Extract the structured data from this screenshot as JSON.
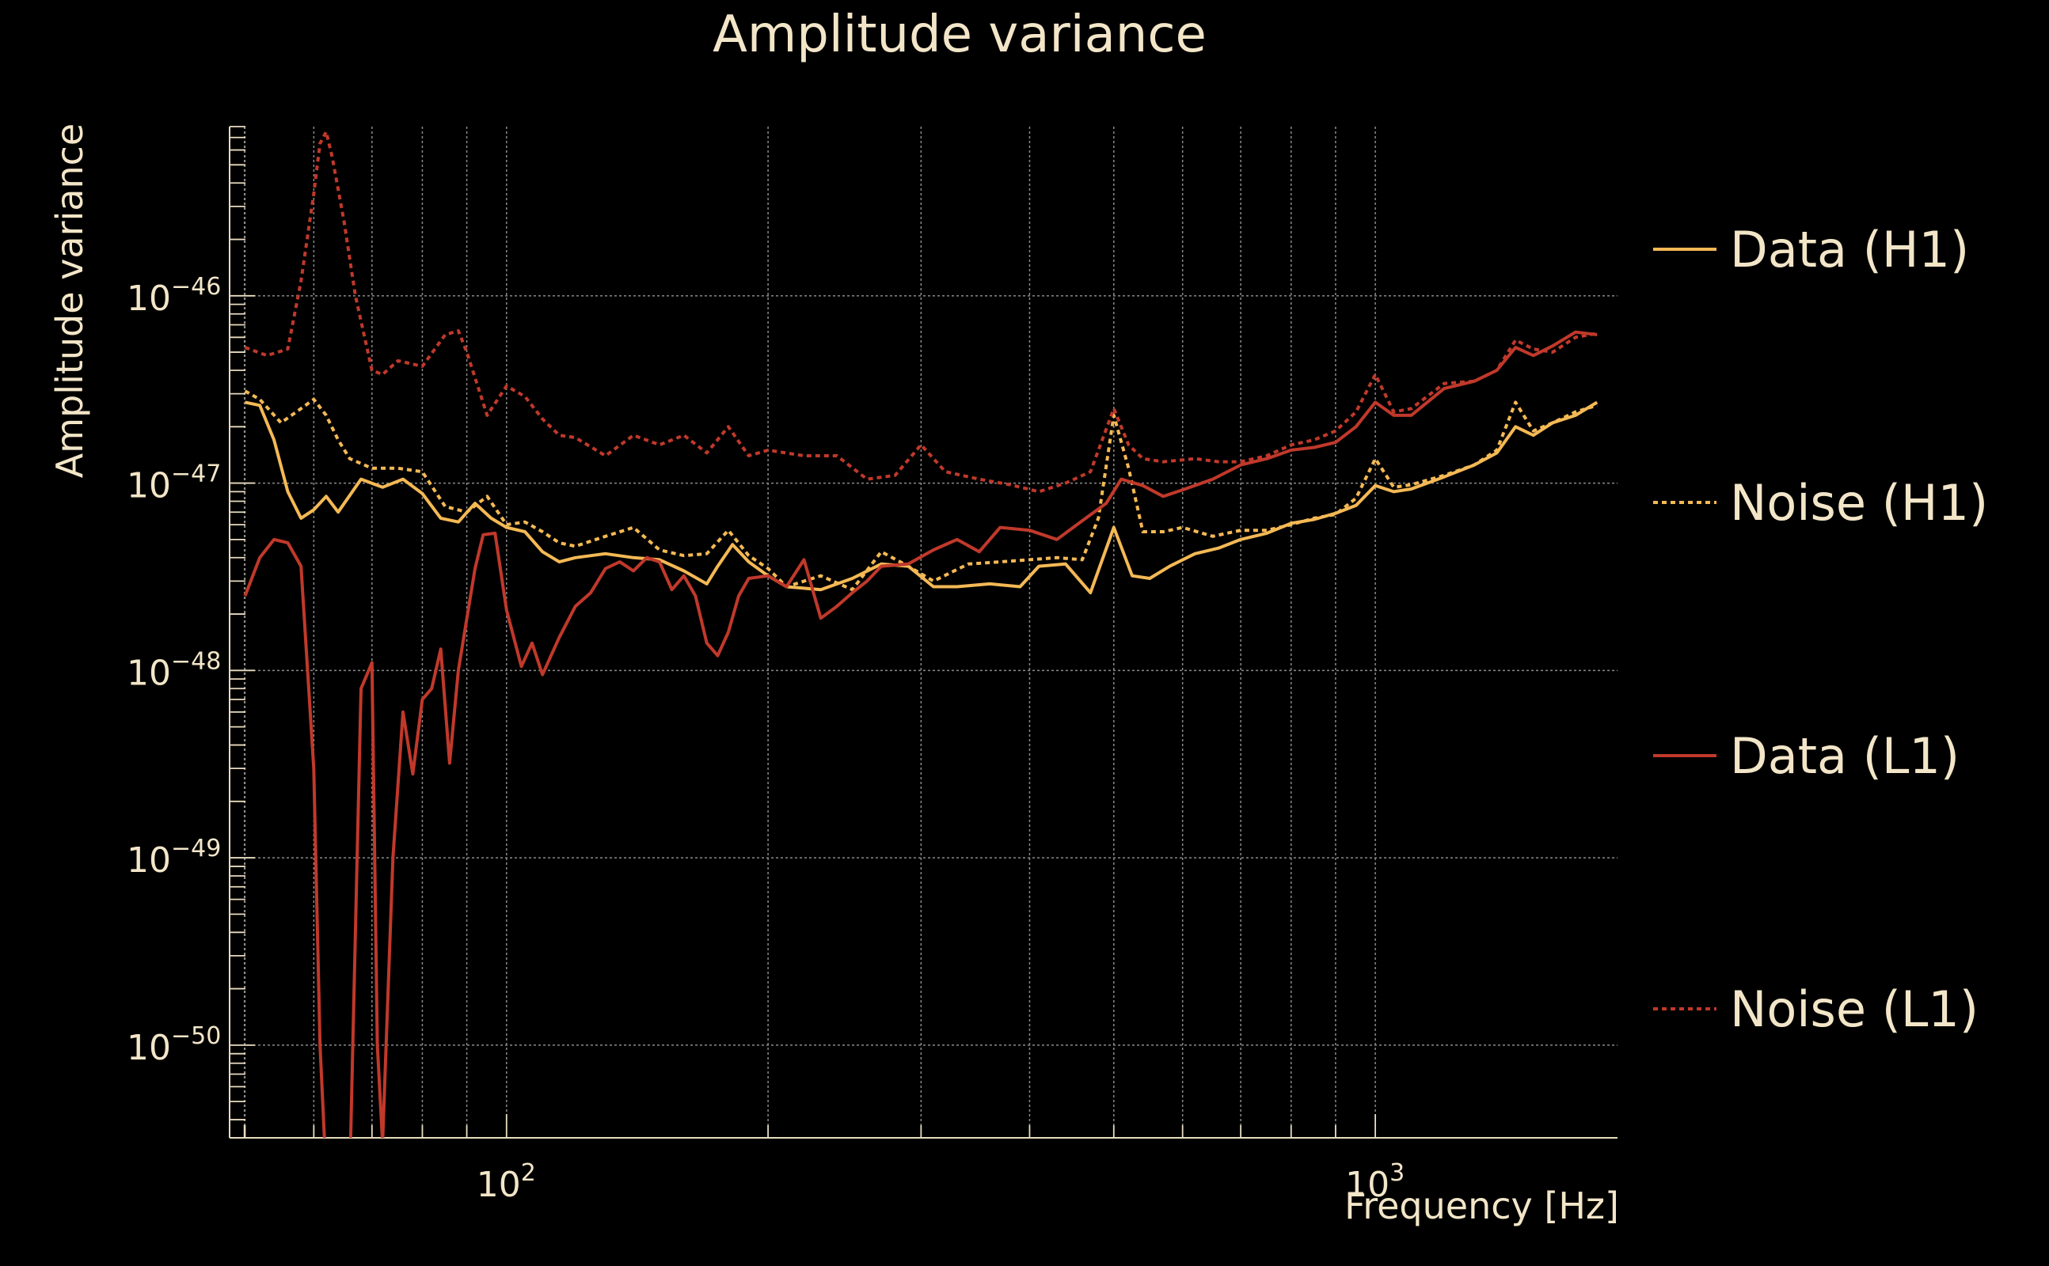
{
  "chart_data": {
    "type": "line",
    "title": "Amplitude variance",
    "xlabel": "Frequency [Hz]",
    "ylabel": "Amplitude variance",
    "x_scale": "log",
    "y_scale": "log",
    "xlim": [
      48,
      1900
    ],
    "ylim": [
      3.2e-51,
      8e-46
    ],
    "x_ticks": [
      {
        "value": 100,
        "base": "10",
        "exp": "2"
      },
      {
        "value": 1000,
        "base": "10",
        "exp": "3"
      }
    ],
    "y_ticks": [
      {
        "value": 1e-46,
        "base": "10",
        "exp": "−46"
      },
      {
        "value": 1e-47,
        "base": "10",
        "exp": "−47"
      },
      {
        "value": 1e-48,
        "base": "10",
        "exp": "−48"
      },
      {
        "value": 1e-49,
        "base": "10",
        "exp": "−49"
      },
      {
        "value": 1e-50,
        "base": "10",
        "exp": "−50"
      }
    ],
    "grid": true,
    "legend_position": "right",
    "colors": {
      "background": "#000000",
      "text": "#f3e6c8",
      "axis": "#e8dcc0",
      "grid": "#8a8a8a"
    },
    "series": [
      {
        "name": "Data (H1)",
        "color": "#f4b955",
        "style": "solid",
        "points": [
          [
            50,
            2.7e-47
          ],
          [
            52,
            2.6e-47
          ],
          [
            54,
            1.7e-47
          ],
          [
            56,
            9e-48
          ],
          [
            58,
            6.5e-48
          ],
          [
            60,
            7.2e-48
          ],
          [
            62,
            8.5e-48
          ],
          [
            64,
            7e-48
          ],
          [
            68,
            1.05e-47
          ],
          [
            72,
            9.5e-48
          ],
          [
            76,
            1.05e-47
          ],
          [
            80,
            8.8e-48
          ],
          [
            84,
            6.5e-48
          ],
          [
            88,
            6.2e-48
          ],
          [
            92,
            7.8e-48
          ],
          [
            96,
            6.5e-48
          ],
          [
            100,
            5.8e-48
          ],
          [
            105,
            5.5e-48
          ],
          [
            110,
            4.3e-48
          ],
          [
            115,
            3.8e-48
          ],
          [
            120,
            4e-48
          ],
          [
            130,
            4.2e-48
          ],
          [
            140,
            4e-48
          ],
          [
            150,
            3.9e-48
          ],
          [
            160,
            3.4e-48
          ],
          [
            170,
            2.9e-48
          ],
          [
            175,
            3.6e-48
          ],
          [
            182,
            4.7e-48
          ],
          [
            190,
            3.8e-48
          ],
          [
            200,
            3.2e-48
          ],
          [
            210,
            2.8e-48
          ],
          [
            230,
            2.7e-48
          ],
          [
            250,
            3.1e-48
          ],
          [
            270,
            3.7e-48
          ],
          [
            290,
            3.6e-48
          ],
          [
            310,
            2.8e-48
          ],
          [
            330,
            2.8e-48
          ],
          [
            360,
            2.9e-48
          ],
          [
            390,
            2.8e-48
          ],
          [
            410,
            3.6e-48
          ],
          [
            440,
            3.7e-48
          ],
          [
            470,
            2.6e-48
          ],
          [
            500,
            5.8e-48
          ],
          [
            525,
            3.2e-48
          ],
          [
            550,
            3.1e-48
          ],
          [
            580,
            3.6e-48
          ],
          [
            620,
            4.2e-48
          ],
          [
            660,
            4.5e-48
          ],
          [
            700,
            5e-48
          ],
          [
            750,
            5.4e-48
          ],
          [
            800,
            6.1e-48
          ],
          [
            850,
            6.4e-48
          ],
          [
            900,
            6.9e-48
          ],
          [
            950,
            7.6e-48
          ],
          [
            1000,
            9.7e-48
          ],
          [
            1050,
            9e-48
          ],
          [
            1100,
            9.3e-48
          ],
          [
            1200,
            1.08e-47
          ],
          [
            1300,
            1.25e-47
          ],
          [
            1380,
            1.45e-47
          ],
          [
            1450,
            2e-47
          ],
          [
            1520,
            1.8e-47
          ],
          [
            1600,
            2.1e-47
          ],
          [
            1700,
            2.3e-47
          ],
          [
            1800,
            2.7e-47
          ]
        ]
      },
      {
        "name": "Noise (H1)",
        "color": "#f4b955",
        "style": "dotted",
        "points": [
          [
            50,
            3.1e-47
          ],
          [
            52,
            2.8e-47
          ],
          [
            55,
            2.1e-47
          ],
          [
            58,
            2.5e-47
          ],
          [
            60,
            2.8e-47
          ],
          [
            62,
            2.3e-47
          ],
          [
            64,
            1.7e-47
          ],
          [
            66,
            1.35e-47
          ],
          [
            70,
            1.2e-47
          ],
          [
            75,
            1.2e-47
          ],
          [
            80,
            1.15e-47
          ],
          [
            85,
            7.5e-48
          ],
          [
            90,
            7e-48
          ],
          [
            95,
            8.5e-48
          ],
          [
            100,
            6e-48
          ],
          [
            105,
            6.2e-48
          ],
          [
            110,
            5.5e-48
          ],
          [
            115,
            4.8e-48
          ],
          [
            120,
            4.6e-48
          ],
          [
            130,
            5.2e-48
          ],
          [
            140,
            5.8e-48
          ],
          [
            150,
            4.4e-48
          ],
          [
            160,
            4.1e-48
          ],
          [
            170,
            4.2e-48
          ],
          [
            180,
            5.6e-48
          ],
          [
            190,
            4.1e-48
          ],
          [
            200,
            3.5e-48
          ],
          [
            210,
            2.8e-48
          ],
          [
            230,
            3.2e-48
          ],
          [
            250,
            2.7e-48
          ],
          [
            270,
            4.3e-48
          ],
          [
            290,
            3.6e-48
          ],
          [
            310,
            3e-48
          ],
          [
            340,
            3.7e-48
          ],
          [
            370,
            3.8e-48
          ],
          [
            400,
            3.9e-48
          ],
          [
            430,
            4e-48
          ],
          [
            460,
            3.9e-48
          ],
          [
            480,
            6.5e-48
          ],
          [
            500,
            2.3e-47
          ],
          [
            520,
            1.2e-47
          ],
          [
            540,
            5.5e-48
          ],
          [
            570,
            5.5e-48
          ],
          [
            600,
            5.8e-48
          ],
          [
            650,
            5.2e-48
          ],
          [
            700,
            5.6e-48
          ],
          [
            750,
            5.6e-48
          ],
          [
            800,
            6e-48
          ],
          [
            850,
            6.5e-48
          ],
          [
            900,
            6.8e-48
          ],
          [
            950,
            8.3e-48
          ],
          [
            1000,
            1.35e-47
          ],
          [
            1050,
            9.5e-48
          ],
          [
            1100,
            9.8e-48
          ],
          [
            1200,
            1.1e-47
          ],
          [
            1300,
            1.25e-47
          ],
          [
            1380,
            1.5e-47
          ],
          [
            1450,
            2.7e-47
          ],
          [
            1520,
            1.9e-47
          ],
          [
            1600,
            2.1e-47
          ],
          [
            1700,
            2.4e-47
          ],
          [
            1800,
            2.6e-47
          ]
        ]
      },
      {
        "name": "Data (L1)",
        "color": "#c0392b",
        "style": "solid",
        "points": [
          [
            50,
            2.5e-48
          ],
          [
            52,
            4e-48
          ],
          [
            54,
            5e-48
          ],
          [
            56,
            4.8e-48
          ],
          [
            58,
            3.6e-48
          ],
          [
            60,
            3e-49
          ],
          [
            61,
            1e-50
          ],
          [
            62,
            2e-51
          ],
          [
            64,
            2e-51
          ],
          [
            66,
            2e-51
          ],
          [
            68,
            8e-49
          ],
          [
            70,
            1.1e-48
          ],
          [
            71,
            1e-50
          ],
          [
            72,
            3e-51
          ],
          [
            74,
            1e-49
          ],
          [
            76,
            6e-49
          ],
          [
            78,
            2.8e-49
          ],
          [
            80,
            7e-49
          ],
          [
            82,
            8e-49
          ],
          [
            84,
            1.3e-48
          ],
          [
            86,
            3.2e-49
          ],
          [
            88,
            1e-48
          ],
          [
            92,
            3.5e-48
          ],
          [
            94,
            5.3e-48
          ],
          [
            97,
            5.4e-48
          ],
          [
            100,
            2.1e-48
          ],
          [
            104,
            1.05e-48
          ],
          [
            107,
            1.4e-48
          ],
          [
            110,
            9.5e-49
          ],
          [
            115,
            1.5e-48
          ],
          [
            120,
            2.2e-48
          ],
          [
            125,
            2.6e-48
          ],
          [
            130,
            3.5e-48
          ],
          [
            135,
            3.8e-48
          ],
          [
            140,
            3.4e-48
          ],
          [
            145,
            4e-48
          ],
          [
            150,
            3.8e-48
          ],
          [
            155,
            2.7e-48
          ],
          [
            160,
            3.2e-48
          ],
          [
            165,
            2.5e-48
          ],
          [
            170,
            1.4e-48
          ],
          [
            175,
            1.2e-48
          ],
          [
            180,
            1.6e-48
          ],
          [
            185,
            2.5e-48
          ],
          [
            190,
            3.1e-48
          ],
          [
            200,
            3.2e-48
          ],
          [
            210,
            2.8e-48
          ],
          [
            220,
            3.9e-48
          ],
          [
            230,
            1.9e-48
          ],
          [
            240,
            2.2e-48
          ],
          [
            250,
            2.6e-48
          ],
          [
            260,
            3e-48
          ],
          [
            270,
            3.6e-48
          ],
          [
            290,
            3.7e-48
          ],
          [
            310,
            4.4e-48
          ],
          [
            330,
            5e-48
          ],
          [
            350,
            4.3e-48
          ],
          [
            370,
            5.8e-48
          ],
          [
            400,
            5.6e-48
          ],
          [
            430,
            5e-48
          ],
          [
            460,
            6.3e-48
          ],
          [
            490,
            7.8e-48
          ],
          [
            510,
            1.05e-47
          ],
          [
            540,
            9.7e-48
          ],
          [
            570,
            8.5e-48
          ],
          [
            600,
            9.2e-48
          ],
          [
            650,
            1.05e-47
          ],
          [
            700,
            1.25e-47
          ],
          [
            750,
            1.35e-47
          ],
          [
            800,
            1.5e-47
          ],
          [
            850,
            1.55e-47
          ],
          [
            900,
            1.65e-47
          ],
          [
            950,
            2e-47
          ],
          [
            1000,
            2.7e-47
          ],
          [
            1050,
            2.3e-47
          ],
          [
            1100,
            2.3e-47
          ],
          [
            1200,
            3.2e-47
          ],
          [
            1300,
            3.5e-47
          ],
          [
            1380,
            4e-47
          ],
          [
            1450,
            5.3e-47
          ],
          [
            1520,
            4.8e-47
          ],
          [
            1600,
            5.4e-47
          ],
          [
            1700,
            6.4e-47
          ],
          [
            1800,
            6.2e-47
          ]
        ]
      },
      {
        "name": "Noise (L1)",
        "color": "#c0392b",
        "style": "dotted",
        "points": [
          [
            50,
            5.3e-47
          ],
          [
            53,
            4.8e-47
          ],
          [
            56,
            5.2e-47
          ],
          [
            58,
            1.2e-46
          ],
          [
            60,
            3.5e-46
          ],
          [
            61,
            6.5e-46
          ],
          [
            62,
            7.5e-46
          ],
          [
            63,
            5.5e-46
          ],
          [
            65,
            2.5e-46
          ],
          [
            67,
            1e-46
          ],
          [
            70,
            4e-47
          ],
          [
            72,
            3.8e-47
          ],
          [
            75,
            4.5e-47
          ],
          [
            80,
            4.2e-47
          ],
          [
            85,
            6.2e-47
          ],
          [
            88,
            6.5e-47
          ],
          [
            90,
            5e-47
          ],
          [
            95,
            2.3e-47
          ],
          [
            100,
            3.3e-47
          ],
          [
            105,
            2.9e-47
          ],
          [
            110,
            2.2e-47
          ],
          [
            115,
            1.8e-47
          ],
          [
            120,
            1.75e-47
          ],
          [
            130,
            1.4e-47
          ],
          [
            140,
            1.8e-47
          ],
          [
            150,
            1.6e-47
          ],
          [
            160,
            1.8e-47
          ],
          [
            170,
            1.45e-47
          ],
          [
            180,
            2e-47
          ],
          [
            190,
            1.4e-47
          ],
          [
            200,
            1.5e-47
          ],
          [
            220,
            1.4e-47
          ],
          [
            240,
            1.4e-47
          ],
          [
            260,
            1.05e-47
          ],
          [
            280,
            1.1e-47
          ],
          [
            300,
            1.6e-47
          ],
          [
            320,
            1.15e-47
          ],
          [
            350,
            1.05e-47
          ],
          [
            380,
            9.8e-48
          ],
          [
            410,
            9e-48
          ],
          [
            440,
            1e-47
          ],
          [
            470,
            1.15e-47
          ],
          [
            500,
            2.5e-47
          ],
          [
            520,
            1.6e-47
          ],
          [
            540,
            1.35e-47
          ],
          [
            570,
            1.3e-47
          ],
          [
            620,
            1.35e-47
          ],
          [
            660,
            1.3e-47
          ],
          [
            700,
            1.3e-47
          ],
          [
            750,
            1.4e-47
          ],
          [
            800,
            1.6e-47
          ],
          [
            850,
            1.7e-47
          ],
          [
            900,
            1.9e-47
          ],
          [
            950,
            2.4e-47
          ],
          [
            1000,
            3.8e-47
          ],
          [
            1050,
            2.4e-47
          ],
          [
            1100,
            2.5e-47
          ],
          [
            1200,
            3.4e-47
          ],
          [
            1300,
            3.5e-47
          ],
          [
            1380,
            4e-47
          ],
          [
            1450,
            5.8e-47
          ],
          [
            1520,
            5.2e-47
          ],
          [
            1600,
            5e-47
          ],
          [
            1700,
            6e-47
          ],
          [
            1800,
            6.3e-47
          ]
        ]
      }
    ]
  }
}
